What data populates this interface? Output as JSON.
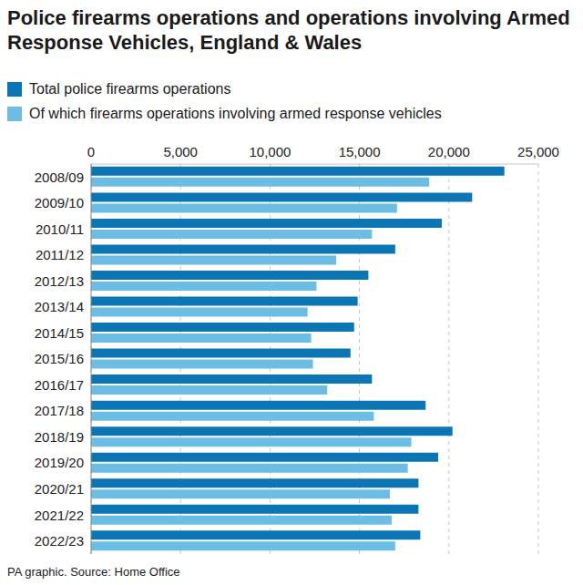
{
  "chart_data": {
    "type": "bar",
    "orientation": "horizontal",
    "title": "Police firearms operations and operations involving Armed Response Vehicles, England & Wales",
    "source": "PA graphic. Source: Home Office",
    "categories": [
      "2008/09",
      "2009/10",
      "2010/11",
      "2011/12",
      "2012/13",
      "2013/14",
      "2014/15",
      "2015/16",
      "2016/17",
      "2017/18",
      "2018/19",
      "2019/20",
      "2020/21",
      "2021/22",
      "2022/23"
    ],
    "series": [
      {
        "name": "Total police firearms operations",
        "color": "#0b76b3",
        "values": [
          23100,
          21300,
          19600,
          17000,
          15500,
          14900,
          14700,
          14500,
          15700,
          18700,
          20200,
          19400,
          18300,
          18300,
          18400
        ]
      },
      {
        "name": "Of which firearms operations involving armed response vehicles",
        "color": "#6cbde3",
        "values": [
          18900,
          17100,
          15700,
          13700,
          12600,
          12100,
          12300,
          12400,
          13200,
          15800,
          17900,
          17700,
          16700,
          16800,
          17000
        ]
      }
    ],
    "xlim": [
      0,
      25000
    ],
    "xticks": [
      0,
      {
        "value": 5000,
        "label": "5,000"
      },
      {
        "value": 10000,
        "label": "10,000"
      },
      {
        "value": 15000,
        "label": "15,000"
      },
      {
        "value": 20000,
        "label": "20,000"
      },
      {
        "value": 25000,
        "label": "25,000"
      }
    ],
    "grid": true,
    "legend": "top"
  }
}
